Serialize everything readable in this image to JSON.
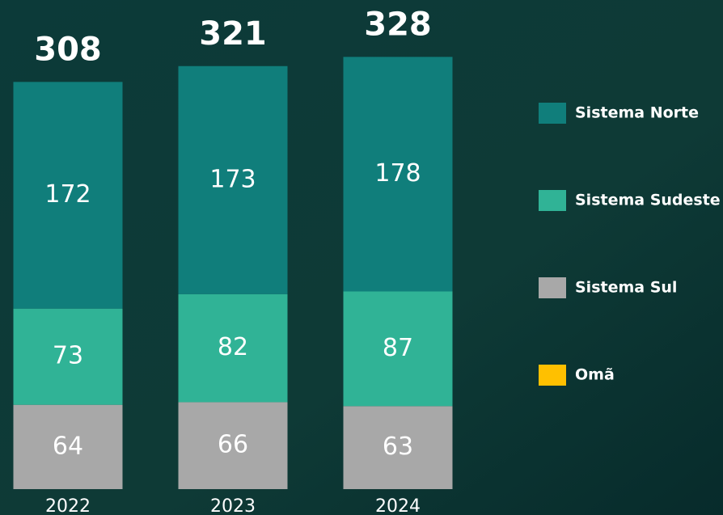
{
  "chart_data": {
    "type": "bar",
    "stacked": true,
    "categories": [
      "2022",
      "2023",
      "2024"
    ],
    "totals": [
      308,
      321,
      328
    ],
    "series": [
      {
        "name": "Sistema Sul",
        "color": "#a8a8a8",
        "values": [
          64,
          66,
          63
        ]
      },
      {
        "name": "Sistema Sudeste",
        "color": "#30b396",
        "values": [
          73,
          82,
          87
        ]
      },
      {
        "name": "Sistema Norte",
        "color": "#107e7b",
        "values": [
          172,
          173,
          178
        ]
      },
      {
        "name": "Omã",
        "color": "#ffc000",
        "values": [
          null,
          null,
          null
        ]
      }
    ],
    "legend_order": [
      2,
      1,
      0,
      3
    ]
  }
}
